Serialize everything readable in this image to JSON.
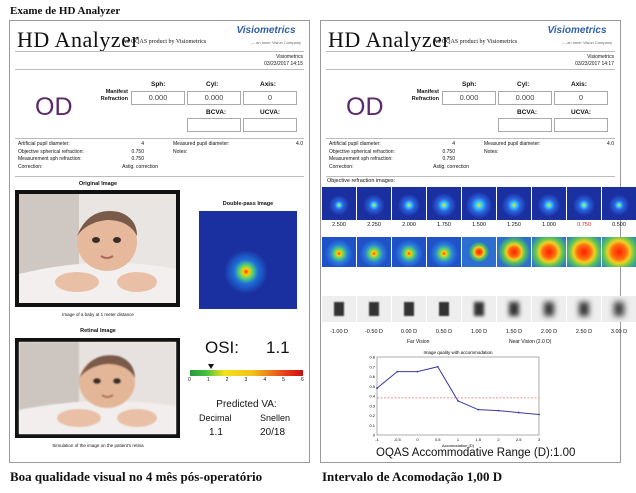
{
  "figure_title": "Exame de HD Analyzer",
  "captions": {
    "left": "Boa qualidade visual no 4 mês pós-operatório",
    "right": "Intervalo de Acomodação 1,00 D"
  },
  "colors": {
    "od": "#5a2a6b",
    "brand_blue": "#2f5fa8",
    "pupil_blue": "#1a2fa0"
  },
  "left_report": {
    "app_title": "HD Analyzer",
    "app_subtitle": "An OQAS product by Visiometrics",
    "logo": "Visiometrics",
    "logo_sub": "— an Ioner Vision Company",
    "company": "Visiometrics",
    "datetime": "03/23/2017 14:15",
    "eye": "OD",
    "manifest_label": "Manifest Refraction",
    "sph_label": "Sph:",
    "cyl_label": "Cyl:",
    "axis_label": "Axis:",
    "sph": "0.000",
    "cyl": "0.000",
    "axis": "0",
    "bcva_label": "BCVA:",
    "ucva_label": "UCVA:",
    "bcva": "",
    "ucva": "",
    "app_pupil_label": "Artificial pupil diameter:",
    "app_pupil": "4",
    "obj_sph_label": "Objective spherical refraction:",
    "obj_sph": "0.750",
    "meas_sph_label": "Measurement sph refraction:",
    "meas_sph": "0.750",
    "correction_label": "Correction:",
    "correction": "Astig. correction",
    "meas_pupil_label": "Measured pupil diameter:",
    "meas_pupil": "4.0",
    "notes_label": "Notes:",
    "original_image_title": "Original Image",
    "original_caption": "Image of a baby at 1 meter distance",
    "retinal_image_title": "Retinal Image",
    "retinal_caption": "Simulation of the image on the patient's retina",
    "double_pass_title": "Double-pass Image",
    "osi_label": "OSI:",
    "osi_value": "1.1",
    "osi_scale": [
      "0",
      "1",
      "2",
      "3",
      "4",
      "5",
      "6"
    ],
    "osi_marker": 1.1,
    "predicted_va_title": "Predicted VA:",
    "decimal_label": "Decimal",
    "snellen_label": "Snellen",
    "decimal_value": "1.1",
    "snellen_value": "20/18"
  },
  "right_report": {
    "app_title": "HD Analyzer",
    "app_subtitle": "An OQAS product by Visiometrics",
    "logo": "Visiometrics",
    "logo_sub": "— an Ioner Vision Company",
    "company": "Visiometrics",
    "datetime": "03/23/2017 14:17",
    "eye": "OD",
    "manifest_label": "Manifest Refraction",
    "sph_label": "Sph:",
    "cyl_label": "Cyl:",
    "axis_label": "Axis:",
    "sph": "0.000",
    "cyl": "0.000",
    "axis": "0",
    "bcva_label": "BCVA:",
    "ucva_label": "UCVA:",
    "bcva": "",
    "ucva": "",
    "app_pupil_label": "Artificial pupil diameter:",
    "app_pupil": "4",
    "obj_sph_label": "Objective spherical refraction:",
    "obj_sph": "0.750",
    "meas_sph_label": "Measurement sph refraction:",
    "meas_sph": "0.750",
    "correction_label": "Correction:",
    "correction": "Astig. correction",
    "meas_pupil_label": "Measured pupil diameter:",
    "meas_pupil": "4.0",
    "notes_label": "Notes:",
    "objective_images_title": "Objective refraction images:",
    "objective_values": [
      "2.500",
      "2.250",
      "2.000",
      "1.750",
      "1.500",
      "1.250",
      "1.000",
      "0.750",
      "0.500"
    ],
    "objective_highlight_index": 7,
    "near_values": [
      "-1.00 D",
      "-0.50 D",
      "0.00 D",
      "0.50 D",
      "1.00 D",
      "1.50 D",
      "2.00 D",
      "2.50 D",
      "3.00 D"
    ],
    "far_vision_label": "Far Vision",
    "near_vision_label": "Near Vision (2.0 D)",
    "range_label": "OQAS Accommodative Range (D):",
    "range_value": "1.00",
    "chart_title": "Image quality with accommodation",
    "chart_xlabel": "Accomodation (D)"
  },
  "chart_data": {
    "type": "line",
    "title": "Image quality with accommodation",
    "xlabel": "Accomodation (D)",
    "ylabel": "",
    "x": [
      -1.0,
      -0.5,
      0.0,
      0.5,
      1.0,
      1.5,
      2.0,
      2.5,
      3.0
    ],
    "xticks": [
      "-1",
      "-0.5",
      "0",
      "0.5",
      "1",
      "1.5",
      "2",
      "2.5",
      "3"
    ],
    "y": [
      0.48,
      0.65,
      0.65,
      0.7,
      0.35,
      0.26,
      0.25,
      0.23,
      0.21
    ],
    "yticks": [
      "0",
      "0.1",
      "0.2",
      "0.3",
      "0.4",
      "0.5",
      "0.6",
      "0.7",
      "0.8"
    ],
    "ylim": [
      0,
      0.8
    ],
    "xlim": [
      -1,
      3
    ],
    "threshold": 0.38,
    "grid": false
  }
}
